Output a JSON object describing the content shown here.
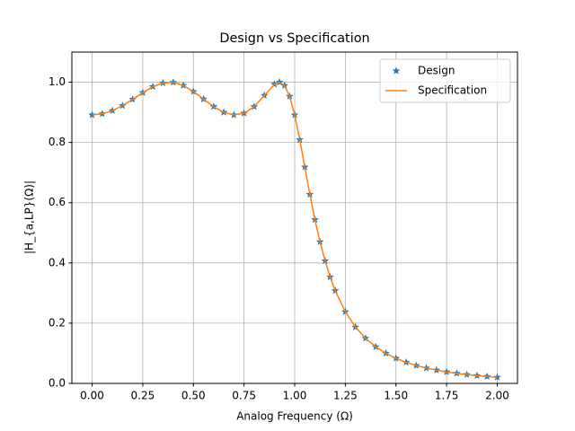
{
  "chart_data": {
    "type": "line",
    "title": "Design vs Specification",
    "xlabel": "Analog Frequency (Ω)",
    "ylabel": "|H_{a,LP}(Ω)|",
    "x": [
      0,
      0.05,
      0.1,
      0.15,
      0.2,
      0.25,
      0.3,
      0.35,
      0.4,
      0.45,
      0.5,
      0.55,
      0.6,
      0.65,
      0.7,
      0.75,
      0.8,
      0.85,
      0.9,
      0.925,
      0.95,
      0.975,
      1.0,
      1.025,
      1.05,
      1.075,
      1.1,
      1.125,
      1.15,
      1.175,
      1.2,
      1.25,
      1.3,
      1.35,
      1.4,
      1.45,
      1.5,
      1.55,
      1.6,
      1.65,
      1.7,
      1.75,
      1.8,
      1.85,
      1.9,
      1.95,
      2.0
    ],
    "series": [
      {
        "name": "Design",
        "color": "#1f77b4",
        "marker": "star",
        "values": [
          0.8913,
          0.8949,
          0.9055,
          0.9222,
          0.9431,
          0.9653,
          0.985,
          0.9975,
          0.9993,
          0.9892,
          0.9691,
          0.9439,
          0.919,
          0.9,
          0.8914,
          0.897,
          0.919,
          0.9559,
          0.9931,
          1.0,
          0.9889,
          0.9531,
          0.8913,
          0.8095,
          0.7182,
          0.6275,
          0.5438,
          0.4702,
          0.4069,
          0.3533,
          0.3081,
          0.2377,
          0.1869,
          0.1496,
          0.1215,
          0.1,
          0.0833,
          0.0701,
          0.0595,
          0.051,
          0.0439,
          0.0381,
          0.0333,
          0.0292,
          0.0257,
          0.0228,
          0.0203
        ]
      },
      {
        "name": "Specification",
        "color": "#ff7f0e",
        "marker": "line",
        "values": [
          0.8913,
          0.8949,
          0.9055,
          0.9222,
          0.9431,
          0.9653,
          0.985,
          0.9975,
          0.9993,
          0.9892,
          0.9691,
          0.9439,
          0.919,
          0.9,
          0.8914,
          0.897,
          0.919,
          0.9559,
          0.9931,
          1.0,
          0.9889,
          0.9531,
          0.8913,
          0.8095,
          0.7182,
          0.6275,
          0.5438,
          0.4702,
          0.4069,
          0.3533,
          0.3081,
          0.2377,
          0.1869,
          0.1496,
          0.1215,
          0.1,
          0.0833,
          0.0701,
          0.0595,
          0.051,
          0.0439,
          0.0381,
          0.0333,
          0.0292,
          0.0257,
          0.0228,
          0.0203
        ]
      }
    ],
    "xlim": [
      -0.1,
      2.1
    ],
    "ylim": [
      0,
      1.1
    ],
    "xticks": [
      {
        "value": 0,
        "label": "0.00"
      },
      {
        "value": 0.25,
        "label": "0.25"
      },
      {
        "value": 0.5,
        "label": "0.50"
      },
      {
        "value": 0.75,
        "label": "0.75"
      },
      {
        "value": 1,
        "label": "1.00"
      },
      {
        "value": 1.25,
        "label": "1.25"
      },
      {
        "value": 1.5,
        "label": "1.50"
      },
      {
        "value": 1.75,
        "label": "1.75"
      },
      {
        "value": 2,
        "label": "2.00"
      }
    ],
    "yticks": [
      {
        "value": 0,
        "label": "0.0"
      },
      0.2,
      0.4,
      0.6,
      0.8,
      {
        "value": 1,
        "label": "1.0"
      }
    ],
    "grid": true,
    "legend": "upper-right"
  }
}
